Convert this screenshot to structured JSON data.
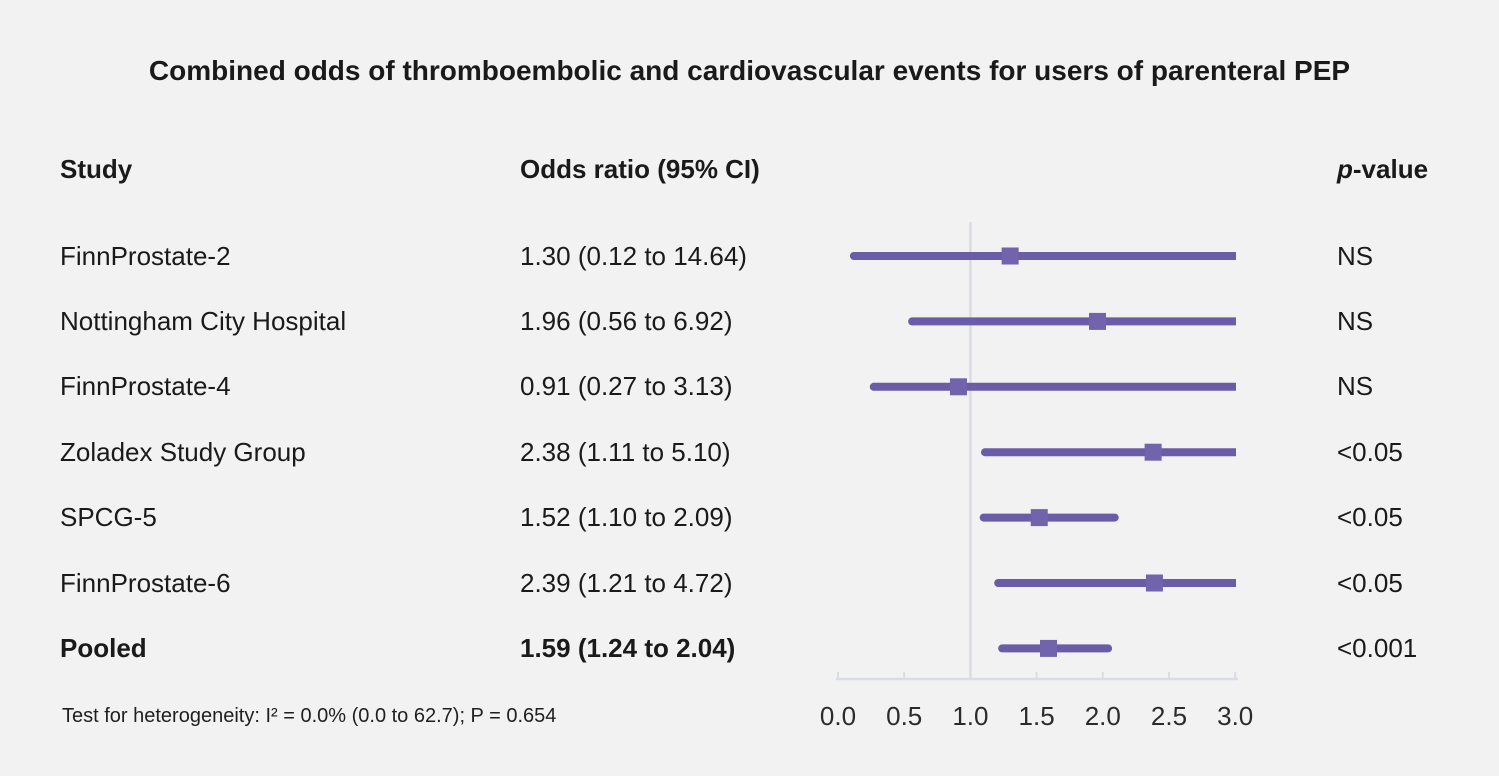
{
  "title": "Combined odds of thromboembolic and cardiovascular events for users of parenteral PEP",
  "columns": {
    "study": "Study",
    "odds_ratio": "Odds ratio (95% CI)",
    "p_prefix": "p",
    "p_suffix": "-value"
  },
  "footnote": "Test for heterogeneity: I² = 0.0% (0.0 to 62.7); P = 0.654",
  "colors": {
    "background": "#f2f2f2",
    "text": "#1a1a1a",
    "ci_line": "#6a5ca6",
    "marker": "#7164ac",
    "grid": "#d9dde3",
    "axis_text": "#2b2b2b"
  },
  "chart_data": {
    "type": "scatter",
    "variant": "forest-plot",
    "title": "Combined odds of thromboembolic and cardiovascular events for users of parenteral PEP",
    "xlabel": "",
    "ylabel": "",
    "xlim": [
      0.0,
      3.0
    ],
    "ref_line": 1.0,
    "ticks": [
      0.0,
      0.5,
      1.0,
      1.5,
      2.0,
      2.5,
      3.0
    ],
    "tick_labels": [
      "0.0",
      "0.5",
      "1.0",
      "1.5",
      "2.0",
      "2.5",
      "3.0"
    ],
    "grid": false,
    "legend": "none",
    "rows": [
      {
        "study": "FinnProstate-2",
        "or": 1.3,
        "ci_low": 0.12,
        "ci_high": 14.64,
        "or_text": "1.30 (0.12 to 14.64)",
        "p": "NS",
        "bold": false
      },
      {
        "study": "Nottingham City Hospital",
        "or": 1.96,
        "ci_low": 0.56,
        "ci_high": 6.92,
        "or_text": "1.96 (0.56 to 6.92)",
        "p": "NS",
        "bold": false
      },
      {
        "study": "FinnProstate-4",
        "or": 0.91,
        "ci_low": 0.27,
        "ci_high": 3.13,
        "or_text": "0.91 (0.27 to 3.13)",
        "p": "NS",
        "bold": false
      },
      {
        "study": "Zoladex Study Group",
        "or": 2.38,
        "ci_low": 1.11,
        "ci_high": 5.1,
        "or_text": "2.38 (1.11 to 5.10)",
        "p": "<0.05",
        "bold": false
      },
      {
        "study": "SPCG-5",
        "or": 1.52,
        "ci_low": 1.1,
        "ci_high": 2.09,
        "or_text": "1.52 (1.10 to 2.09)",
        "p": "<0.05",
        "bold": false
      },
      {
        "study": "FinnProstate-6",
        "or": 2.39,
        "ci_low": 1.21,
        "ci_high": 4.72,
        "or_text": "2.39 (1.21 to 4.72)",
        "p": "<0.05",
        "bold": false
      },
      {
        "study": "Pooled",
        "or": 1.59,
        "ci_low": 1.24,
        "ci_high": 2.04,
        "or_text": "1.59 (1.24 to 2.04)",
        "p": "<0.001",
        "bold": true
      }
    ]
  }
}
